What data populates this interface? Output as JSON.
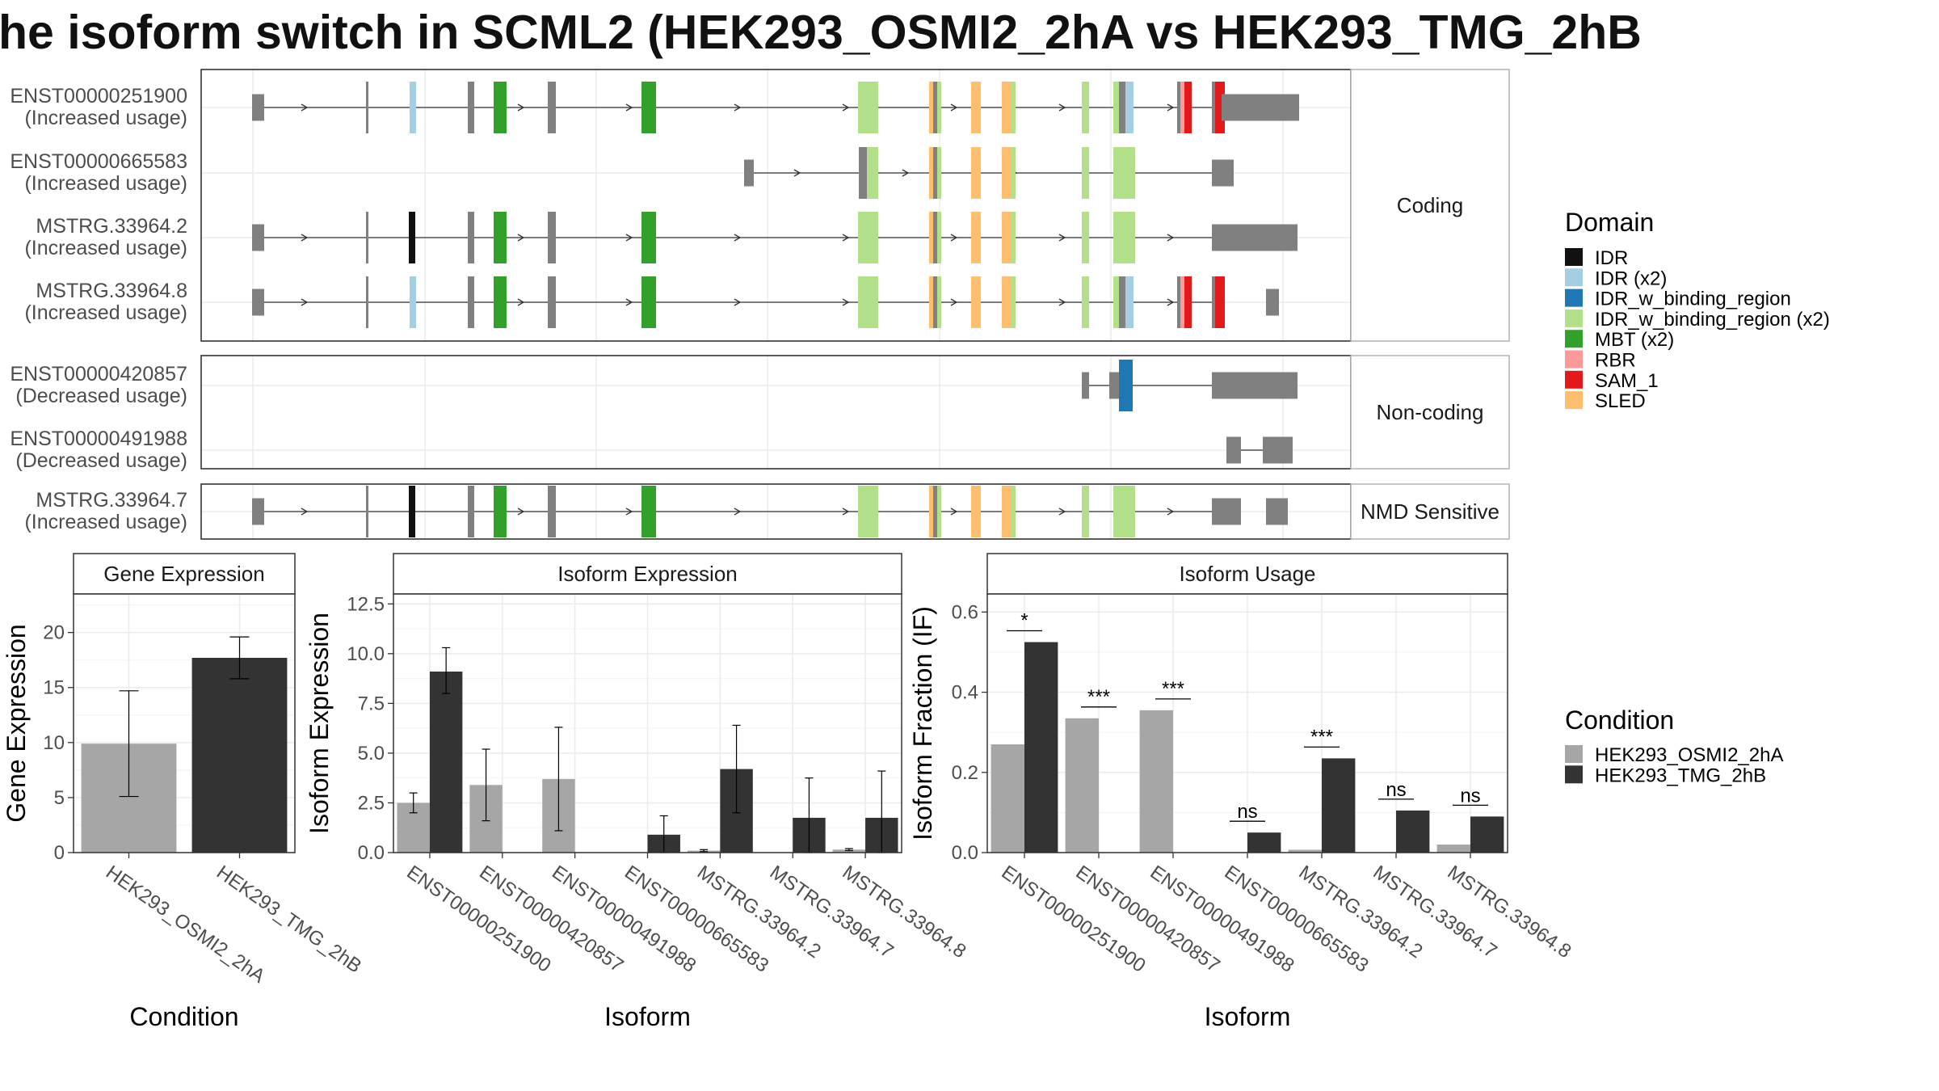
{
  "title": "he isoform switch in SCML2 (HEK293_OSMI2_2hA vs HEK293_TMG_2hB",
  "colors": {
    "cond_a": "#a6a6a6",
    "cond_b": "#333333",
    "exon_grey": "#808080",
    "IDR": "#111111",
    "IDR (x2)": "#a6cee3",
    "IDR_w_binding_region": "#1f78b4",
    "IDR_w_binding_region (x2)": "#b2df8a",
    "MBT (x2)": "#33a02c",
    "RBR": "#fb9a99",
    "SAM_1": "#e31a1c",
    "SLED": "#fdbf6f"
  },
  "structure": {
    "groups": [
      {
        "label": "Coding",
        "transcripts": [
          {
            "id": "ENST00000251900",
            "usage": "(Increased usage)"
          },
          {
            "id": "ENST00000665583",
            "usage": "(Increased usage)"
          },
          {
            "id": "MSTRG.33964.2",
            "usage": "(Increased usage)"
          },
          {
            "id": "MSTRG.33964.8",
            "usage": "(Increased usage)"
          }
        ]
      },
      {
        "label": "Non-coding",
        "transcripts": [
          {
            "id": "ENST00000420857",
            "usage": "(Decreased usage)"
          },
          {
            "id": "ENST00000491988",
            "usage": "(Decreased usage)"
          }
        ]
      },
      {
        "label": "NMD Sensitive",
        "transcripts": [
          {
            "id": "MSTRG.33964.7",
            "usage": "(Increased usage)"
          }
        ]
      }
    ]
  },
  "legend": {
    "domain_title": "Domain",
    "domains": [
      "IDR",
      "IDR (x2)",
      "IDR_w_binding_region",
      "IDR_w_binding_region (x2)",
      "MBT (x2)",
      "RBR",
      "SAM_1",
      "SLED"
    ],
    "condition_title": "Condition",
    "conditions": [
      "HEK293_OSMI2_2hA",
      "HEK293_TMG_2hB"
    ]
  },
  "chart_data": [
    {
      "type": "bar",
      "panel": "Gene Expression",
      "categories": [
        "HEK293_OSMI2_2hA",
        "HEK293_TMG_2hB"
      ],
      "series": [
        {
          "name": "HEK293_OSMI2_2hA",
          "values": [
            9.9,
            null
          ]
        },
        {
          "name": "HEK293_TMG_2hB",
          "values": [
            null,
            17.7
          ]
        }
      ],
      "error_bars": [
        [
          5.1,
          14.7
        ],
        [
          15.8,
          19.6
        ]
      ],
      "xlabel": "Condition",
      "ylabel": "Gene Expression",
      "ylim": [
        0,
        23.5
      ],
      "yticks": [
        "0",
        "5",
        "10",
        "15",
        "20"
      ],
      "grid": true
    },
    {
      "type": "bar",
      "panel": "Isoform Expression",
      "categories": [
        "ENST00000251900",
        "ENST00000420857",
        "ENST00000491988",
        "ENST00000665583",
        "MSTRG.33964.2",
        "MSTRG.33964.7",
        "MSTRG.33964.8"
      ],
      "series": [
        {
          "name": "HEK293_OSMI2_2hA",
          "values": [
            2.5,
            3.4,
            3.7,
            0.0,
            0.1,
            0.0,
            0.15
          ]
        },
        {
          "name": "HEK293_TMG_2hB",
          "values": [
            9.1,
            0.0,
            0.0,
            0.9,
            4.2,
            1.75,
            1.75
          ]
        }
      ],
      "error_bars_a": [
        [
          2.0,
          3.0
        ],
        [
          1.6,
          5.2
        ],
        [
          1.1,
          6.3
        ],
        [
          0,
          0
        ],
        [
          0.05,
          0.15
        ],
        [
          0,
          0
        ],
        [
          0.1,
          0.2
        ]
      ],
      "error_bars_b": [
        [
          8.0,
          10.3
        ],
        [
          0,
          0
        ],
        [
          0,
          0
        ],
        [
          0,
          1.85
        ],
        [
          2.0,
          6.4
        ],
        [
          0,
          3.75
        ],
        [
          0,
          4.1
        ]
      ],
      "xlabel": "Isoform",
      "ylabel": "Isoform Expression",
      "ylim": [
        0,
        13.0
      ],
      "yticks": [
        "0.0",
        "2.5",
        "5.0",
        "7.5",
        "10.0",
        "12.5"
      ],
      "grid": true
    },
    {
      "type": "bar",
      "panel": "Isoform Usage",
      "categories": [
        "ENST00000251900",
        "ENST00000420857",
        "ENST00000491988",
        "ENST00000665583",
        "MSTRG.33964.2",
        "MSTRG.33964.7",
        "MSTRG.33964.8"
      ],
      "series": [
        {
          "name": "HEK293_OSMI2_2hA",
          "values": [
            0.27,
            0.335,
            0.355,
            0.0,
            0.007,
            0.0,
            0.02
          ]
        },
        {
          "name": "HEK293_TMG_2hB",
          "values": [
            0.525,
            0.0,
            0.0,
            0.05,
            0.235,
            0.105,
            0.09
          ]
        }
      ],
      "significance": [
        "*",
        "***",
        "***",
        "ns",
        "***",
        "ns",
        "ns"
      ],
      "xlabel": "Isoform",
      "ylabel": "Isoform Fraction (IF)",
      "ylim": [
        0,
        0.645
      ],
      "yticks": [
        "0.0",
        "0.2",
        "0.4",
        "0.6"
      ],
      "grid": true
    }
  ]
}
